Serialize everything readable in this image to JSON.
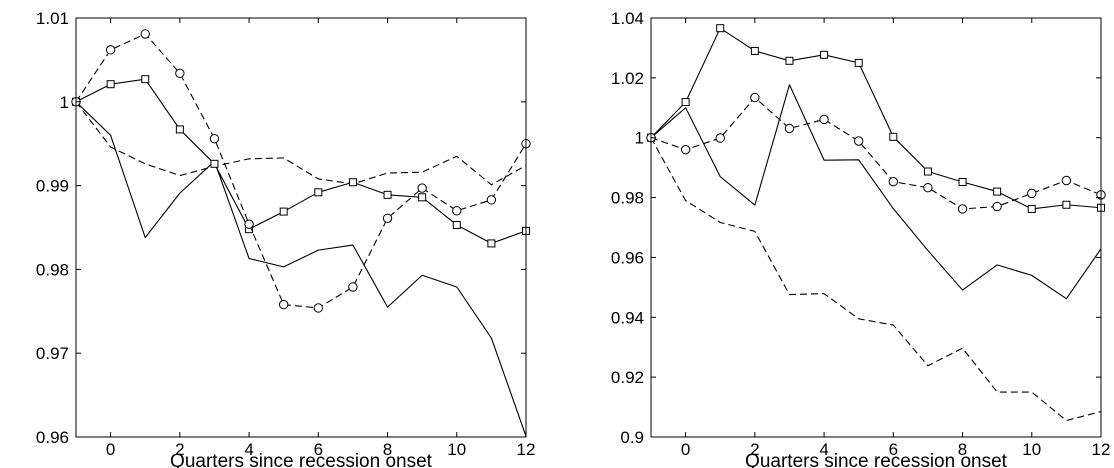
{
  "chart_data": [
    {
      "type": "line",
      "title": "",
      "xlabel": "Quarters since recession onset",
      "ylabel": "",
      "xlim": [
        -1,
        12
      ],
      "ylim": [
        0.96,
        1.01
      ],
      "xticks": [
        0,
        2,
        4,
        6,
        8,
        10,
        12
      ],
      "xtick_labels": [
        "0",
        "2",
        "4",
        "6",
        "8",
        "10",
        "12"
      ],
      "yticks": [
        0.96,
        0.97,
        0.98,
        0.99,
        1,
        1.01
      ],
      "ytick_labels": [
        "0.96",
        "0.97",
        "0.98",
        "0.99",
        "1",
        "1.01"
      ],
      "grid": false,
      "legend": "none",
      "x": [
        -1,
        0,
        1,
        2,
        3,
        4,
        5,
        6,
        7,
        8,
        9,
        10,
        11,
        12
      ],
      "series": [
        {
          "style": "solid",
          "marker": "none",
          "values": [
            1.0,
            0.996,
            0.9838,
            0.9891,
            0.9929,
            0.9813,
            0.9803,
            0.9823,
            0.9829,
            0.9755,
            0.9793,
            0.9779,
            0.9718,
            0.9601
          ]
        },
        {
          "style": "dashed",
          "marker": "none",
          "values": [
            1.0,
            0.9946,
            0.9926,
            0.9912,
            0.9923,
            0.9932,
            0.9933,
            0.9908,
            0.9902,
            0.9915,
            0.9916,
            0.9935,
            0.9901,
            0.9924
          ]
        },
        {
          "style": "solid",
          "marker": "square",
          "values": [
            1.0,
            1.0021,
            1.0027,
            0.9967,
            0.9926,
            0.9848,
            0.9869,
            0.9892,
            0.9904,
            0.9889,
            0.9886,
            0.9853,
            0.9831,
            0.9846
          ]
        },
        {
          "style": "dashed",
          "marker": "circle",
          "values": [
            1.0,
            1.0062,
            1.0081,
            1.0034,
            0.9956,
            0.9854,
            0.9758,
            0.9754,
            0.9779,
            0.9861,
            0.9897,
            0.987,
            0.9883,
            0.995
          ]
        }
      ]
    },
    {
      "type": "line",
      "title": "",
      "xlabel": "Quarters since recession onset",
      "ylabel": "",
      "xlim": [
        -1,
        12
      ],
      "ylim": [
        0.9,
        1.04
      ],
      "xticks": [
        0,
        2,
        4,
        6,
        8,
        10,
        12
      ],
      "xtick_labels": [
        "0",
        "2",
        "4",
        "6",
        "8",
        "10",
        "12"
      ],
      "yticks": [
        0.9,
        0.92,
        0.94,
        0.96,
        0.98,
        1,
        1.02,
        1.04
      ],
      "ytick_labels": [
        "0.9",
        "0.92",
        "0.94",
        "0.96",
        "0.98",
        "1",
        "1.02",
        "1.04"
      ],
      "grid": false,
      "legend": "none",
      "x": [
        -1,
        0,
        1,
        2,
        3,
        4,
        5,
        6,
        7,
        8,
        9,
        10,
        11,
        12
      ],
      "series": [
        {
          "style": "solid",
          "marker": "none",
          "values": [
            1.0,
            1.01,
            0.987,
            0.9775,
            1.0177,
            0.9925,
            0.9926,
            0.9763,
            0.9623,
            0.9491,
            0.9575,
            0.954,
            0.9462,
            0.9629
          ]
        },
        {
          "style": "dashed",
          "marker": "none",
          "values": [
            1.0,
            0.979,
            0.9717,
            0.9687,
            0.9476,
            0.9479,
            0.9395,
            0.9374,
            0.9238,
            0.9297,
            0.915,
            0.915,
            0.9055,
            0.9085
          ]
        },
        {
          "style": "solid",
          "marker": "square",
          "values": [
            1.0,
            1.0119,
            1.0366,
            1.029,
            1.0257,
            1.0277,
            1.025,
            1.0003,
            0.9887,
            0.9852,
            0.982,
            0.9762,
            0.9776,
            0.9766
          ]
        },
        {
          "style": "dashed",
          "marker": "circle",
          "values": [
            1.0,
            0.996,
            0.9999,
            1.0134,
            1.0031,
            1.0061,
            0.9989,
            0.9853,
            0.9833,
            0.9762,
            0.977,
            0.9814,
            0.9857,
            0.9809
          ]
        }
      ]
    }
  ]
}
